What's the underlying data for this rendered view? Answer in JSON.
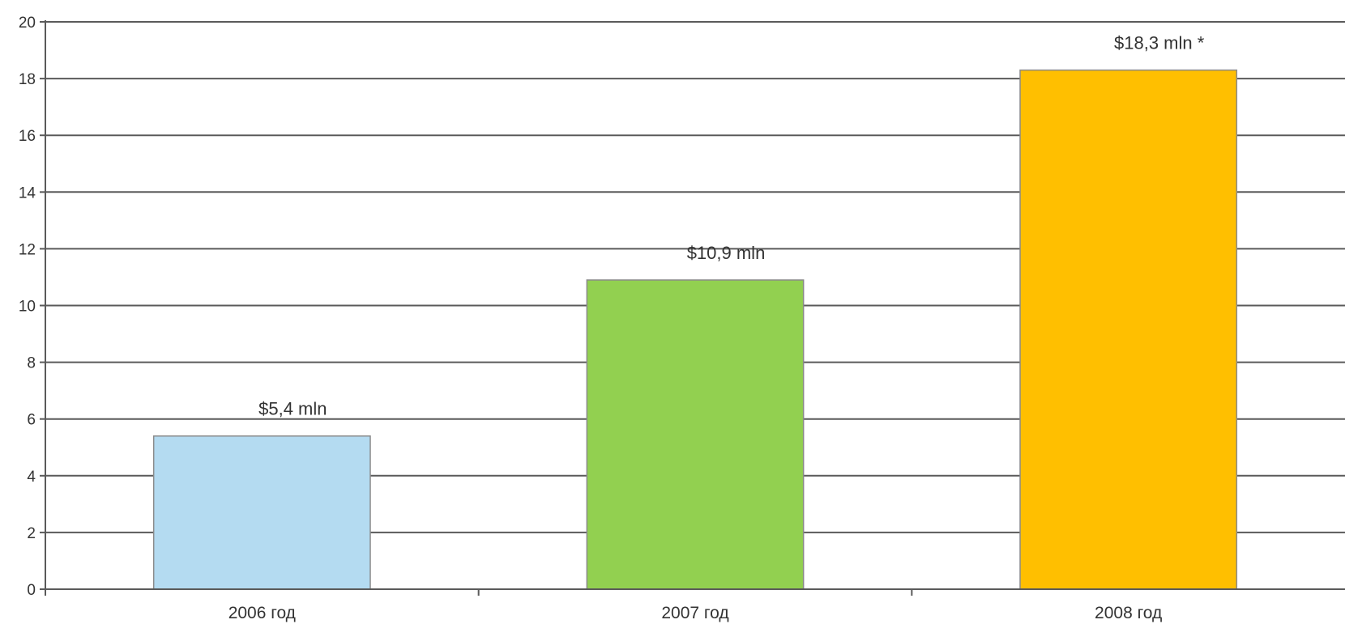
{
  "chart_data": {
    "type": "bar",
    "title": "",
    "xlabel": "",
    "ylabel": "",
    "categories": [
      "2006 год",
      "2007 год",
      "2008 год"
    ],
    "values": [
      5.4,
      10.9,
      18.3
    ],
    "data_labels": [
      "$5,4 mln",
      "$10,9 mln",
      "$18,3 mln *"
    ],
    "bar_colors": [
      "#B4DBF1",
      "#92D050",
      "#FFBF00"
    ],
    "ylim": [
      0,
      20
    ],
    "y_ticks": [
      0,
      2,
      4,
      6,
      8,
      10,
      12,
      14,
      16,
      18,
      20
    ],
    "grid": true,
    "legend": "none"
  },
  "colors": {
    "grid": "#5a5a5a",
    "axis": "#5a5a5a",
    "bar_border": "#8a8a8a",
    "text": "#333333"
  }
}
